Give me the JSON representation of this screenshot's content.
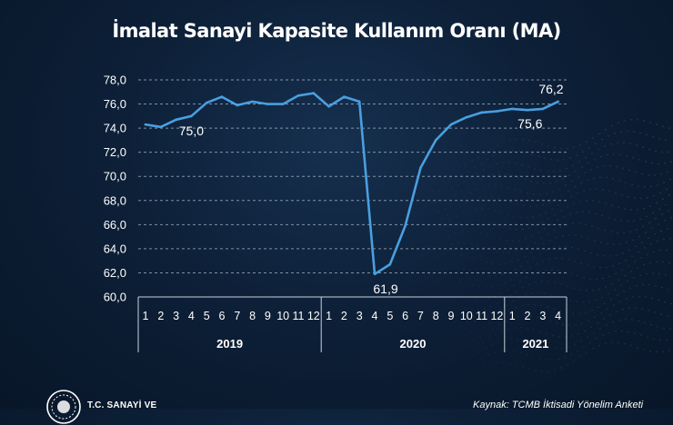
{
  "chart_data": {
    "type": "line",
    "title": "İmalat Sanayi Kapasite Kullanım Oranı (MA)",
    "xlabel": "",
    "ylabel": "",
    "ylim": [
      60,
      78
    ],
    "yticks": [
      "60,0",
      "62,0",
      "64,0",
      "66,0",
      "68,0",
      "70,0",
      "72,0",
      "74,0",
      "76,0",
      "78,0"
    ],
    "grid": "horizontal dashed",
    "months": [
      "1",
      "2",
      "3",
      "4",
      "5",
      "6",
      "7",
      "8",
      "9",
      "10",
      "11",
      "12",
      "1",
      "2",
      "3",
      "4",
      "5",
      "6",
      "7",
      "8",
      "9",
      "10",
      "11",
      "12",
      "1",
      "2",
      "3",
      "4"
    ],
    "years": [
      {
        "label": "2019",
        "count": 12
      },
      {
        "label": "2020",
        "count": 12
      },
      {
        "label": "2021",
        "count": 4
      }
    ],
    "series": [
      {
        "values": [
          74.3,
          74.1,
          74.7,
          75.0,
          76.1,
          76.6,
          75.9,
          76.2,
          76.0,
          76.0,
          76.7,
          76.9,
          75.8,
          76.6,
          76.2,
          61.9,
          62.7,
          65.9,
          70.7,
          73.0,
          74.3,
          74.9,
          75.3,
          75.4,
          75.6,
          75.5,
          75.6,
          76.2
        ],
        "color": "#4a9fe0"
      }
    ],
    "annotations": [
      {
        "index": 3,
        "text": "75,0",
        "position": "below"
      },
      {
        "index": 15,
        "text": "61,9",
        "position": "below"
      },
      {
        "index": 26,
        "text": "75,6",
        "position": "below"
      },
      {
        "index": 27,
        "text": "76,2",
        "position": "above"
      }
    ]
  },
  "footer": {
    "logo_text": "T.C. SANAYİ VE",
    "source": "Kaynak: TCMB İktisadi Yönelim Anketi"
  },
  "colors": {
    "background": "#0d2038",
    "line": "#4a9fe0",
    "grid": "#a9b6c6",
    "text": "#ffffff"
  }
}
